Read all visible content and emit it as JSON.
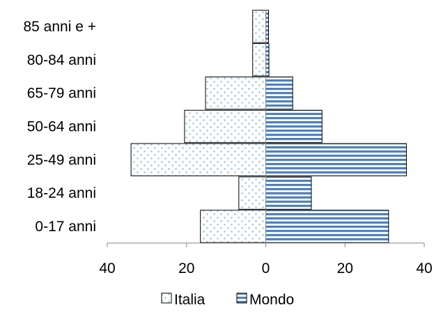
{
  "chart_data": {
    "type": "bar",
    "orientation": "horizontal",
    "layout": "population-pyramid",
    "categories": [
      "0-17 anni",
      "18-24 anni",
      "25-49 anni",
      "50-64 anni",
      "65-79 anni",
      "80-84 anni",
      "85 anni e +"
    ],
    "series": [
      {
        "name": "Italia",
        "side": "left",
        "pattern": "dots",
        "color": "#9dc3e6",
        "values": [
          16.5,
          6.8,
          34.0,
          20.5,
          15.2,
          3.3,
          3.3
        ]
      },
      {
        "name": "Mondo",
        "side": "right",
        "pattern": "horizontal-stripes",
        "color": "#4f81bd",
        "values": [
          31.0,
          11.5,
          35.5,
          14.2,
          6.8,
          0.8,
          0.7
        ]
      }
    ],
    "xlim": [
      -40,
      40
    ],
    "xticks": [
      -40,
      -20,
      0,
      20,
      40
    ],
    "xtick_labels": [
      "40",
      "20",
      "0",
      "20",
      "40"
    ],
    "legend_position": "bottom",
    "grid": false
  }
}
